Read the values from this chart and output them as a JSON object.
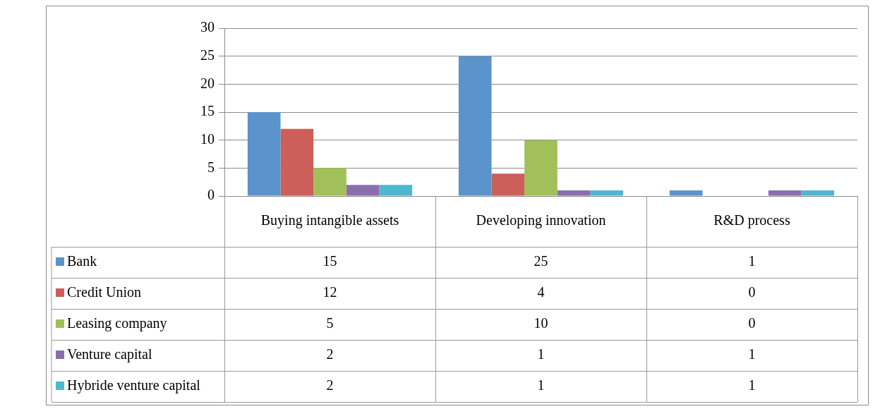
{
  "chart_data": {
    "type": "bar",
    "categories": [
      "Buying intangible assets",
      "Developing innovation",
      "R&D process"
    ],
    "series": [
      {
        "name": "Bank",
        "color": "#5b93cb",
        "values": [
          15,
          25,
          1
        ]
      },
      {
        "name": "Credit Union",
        "color": "#cc5f5a",
        "values": [
          12,
          4,
          0
        ]
      },
      {
        "name": "Leasing company",
        "color": "#a1c05a",
        "values": [
          5,
          10,
          0
        ]
      },
      {
        "name": "Venture capital",
        "color": "#8b6fad",
        "values": [
          2,
          1,
          1
        ]
      },
      {
        "name": "Hybride venture capital",
        "color": "#4fb8cf",
        "values": [
          2,
          1,
          1
        ]
      }
    ],
    "ylim": [
      0,
      30
    ],
    "yticks": [
      0,
      5,
      10,
      15,
      20,
      25,
      30
    ],
    "grid": "y",
    "data_labels": true,
    "legend": "bottom left"
  }
}
